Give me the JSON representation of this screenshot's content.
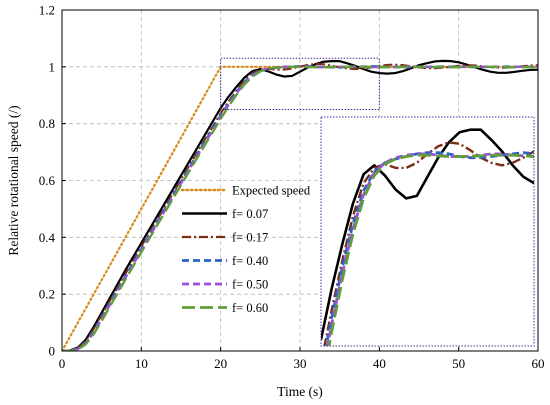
{
  "chart_data": {
    "type": "line",
    "title": "",
    "xlabel": "Time (s)",
    "ylabel": "Relative rotational speed (/)",
    "xlim": [
      0,
      60
    ],
    "ylim": [
      0,
      1.2
    ],
    "xticks": [
      0,
      10,
      20,
      30,
      40,
      50,
      60
    ],
    "yticks": [
      0,
      0.2,
      0.4,
      0.6,
      0.8,
      1,
      1.2
    ],
    "xtick_labels": [
      "0",
      "10",
      "20",
      "30",
      "40",
      "50",
      "60"
    ],
    "ytick_labels": [
      "0",
      "0.2",
      "0.4",
      "0.6",
      "0.8",
      "1",
      "1.2"
    ],
    "grid": true,
    "legend_position": "left",
    "zoom_window": {
      "x_range": [
        20,
        40
      ],
      "y_range": [
        0.85,
        1.03
      ]
    },
    "series": [
      {
        "name": "Expected speed",
        "color": "#d98a1a",
        "dash": "dotted",
        "points": [
          [
            0,
            0
          ],
          [
            20,
            1
          ],
          [
            60,
            1
          ]
        ]
      },
      {
        "name": "f= 0.07",
        "color": "#000000",
        "dash": "solid",
        "points": [
          [
            0,
            0
          ],
          [
            1,
            0.002
          ],
          [
            2,
            0.012
          ],
          [
            3,
            0.04
          ],
          [
            4,
            0.085
          ],
          [
            5,
            0.135
          ],
          [
            6,
            0.185
          ],
          [
            8,
            0.285
          ],
          [
            10,
            0.38
          ],
          [
            12,
            0.475
          ],
          [
            14,
            0.57
          ],
          [
            16,
            0.665
          ],
          [
            18,
            0.76
          ],
          [
            20,
            0.855
          ],
          [
            21,
            0.895
          ],
          [
            22,
            0.93
          ],
          [
            23,
            0.962
          ],
          [
            24,
            0.985
          ],
          [
            25,
            0.992
          ],
          [
            26,
            0.984
          ],
          [
            27,
            0.973
          ],
          [
            28,
            0.966
          ],
          [
            29,
            0.968
          ],
          [
            30,
            0.983
          ],
          [
            31,
            0.998
          ],
          [
            32,
            1.01
          ],
          [
            33,
            1.018
          ],
          [
            34,
            1.02
          ],
          [
            35,
            1.02
          ],
          [
            36,
            1.012
          ],
          [
            37,
            1.003
          ],
          [
            38,
            0.992
          ],
          [
            39,
            0.983
          ],
          [
            40,
            0.978
          ],
          [
            41,
            0.976
          ],
          [
            42,
            0.978
          ],
          [
            43,
            0.985
          ],
          [
            44,
            0.995
          ],
          [
            45,
            1.006
          ],
          [
            46,
            1.013
          ],
          [
            47,
            1.019
          ],
          [
            48,
            1.021
          ],
          [
            49,
            1.02
          ],
          [
            50,
            1.016
          ],
          [
            51,
            1.008
          ],
          [
            52,
            0.999
          ],
          [
            53,
            0.99
          ],
          [
            54,
            0.983
          ],
          [
            55,
            0.979
          ],
          [
            56,
            0.979
          ],
          [
            57,
            0.982
          ],
          [
            58,
            0.986
          ],
          [
            59,
            0.989
          ],
          [
            60,
            0.99
          ]
        ]
      },
      {
        "name": "f= 0.17",
        "color": "#7a2f16",
        "dash": "dashdot",
        "points": [
          [
            0,
            0
          ],
          [
            1,
            0.002
          ],
          [
            2,
            0.01
          ],
          [
            3,
            0.035
          ],
          [
            4,
            0.078
          ],
          [
            5,
            0.126
          ],
          [
            6,
            0.175
          ],
          [
            8,
            0.272
          ],
          [
            10,
            0.368
          ],
          [
            12,
            0.462
          ],
          [
            14,
            0.556
          ],
          [
            16,
            0.65
          ],
          [
            18,
            0.744
          ],
          [
            20,
            0.836
          ],
          [
            21,
            0.878
          ],
          [
            22,
            0.917
          ],
          [
            23,
            0.952
          ],
          [
            24,
            0.978
          ],
          [
            25,
            0.99
          ],
          [
            26,
            0.993
          ],
          [
            27,
            0.99
          ],
          [
            28,
            0.99
          ],
          [
            29,
            0.994
          ],
          [
            30,
            1.001
          ],
          [
            31,
            1.007
          ],
          [
            32,
            1.01
          ],
          [
            33,
            1.009
          ],
          [
            34,
            1.004
          ],
          [
            35,
            0.998
          ],
          [
            36,
            0.994
          ],
          [
            37,
            0.992
          ],
          [
            38,
            0.994
          ],
          [
            39,
            0.998
          ],
          [
            40,
            1.003
          ],
          [
            41,
            1.007
          ],
          [
            42,
            1.008
          ],
          [
            43,
            1.006
          ],
          [
            44,
            1.002
          ],
          [
            45,
            0.998
          ],
          [
            46,
            0.995
          ],
          [
            47,
            0.995
          ],
          [
            48,
            0.997
          ],
          [
            49,
            1.0
          ],
          [
            50,
            1.004
          ],
          [
            51,
            1.006
          ],
          [
            52,
            1.005
          ],
          [
            53,
            1.002
          ],
          [
            54,
            0.999
          ],
          [
            55,
            0.997
          ],
          [
            56,
            0.997
          ],
          [
            57,
            0.999
          ],
          [
            58,
            1.002
          ],
          [
            59,
            1.005
          ],
          [
            60,
            1.006
          ]
        ]
      },
      {
        "name": "f= 0.40",
        "color": "#2b62c4",
        "dash": "dashed",
        "points": [
          [
            0,
            0
          ],
          [
            1,
            0.001
          ],
          [
            2,
            0.008
          ],
          [
            3,
            0.03
          ],
          [
            4,
            0.07
          ],
          [
            5,
            0.118
          ],
          [
            6,
            0.167
          ],
          [
            8,
            0.264
          ],
          [
            10,
            0.36
          ],
          [
            12,
            0.455
          ],
          [
            14,
            0.549
          ],
          [
            16,
            0.643
          ],
          [
            18,
            0.737
          ],
          [
            20,
            0.829
          ],
          [
            21,
            0.872
          ],
          [
            22,
            0.912
          ],
          [
            23,
            0.946
          ],
          [
            24,
            0.972
          ],
          [
            25,
            0.987
          ],
          [
            26,
            0.994
          ],
          [
            27,
            0.997
          ],
          [
            28,
            0.999
          ],
          [
            29,
            1.001
          ],
          [
            30,
            1.002
          ],
          [
            31,
            1.002
          ],
          [
            32,
            1.001
          ],
          [
            33,
            0.999
          ],
          [
            34,
            0.998
          ],
          [
            35,
            0.998
          ],
          [
            36,
            0.999
          ],
          [
            37,
            1.0
          ],
          [
            38,
            1.001
          ],
          [
            39,
            1.002
          ],
          [
            40,
            1.001
          ],
          [
            42,
            0.999
          ],
          [
            44,
            0.999
          ],
          [
            46,
            1.0
          ],
          [
            48,
            1.001
          ],
          [
            50,
            1.0
          ],
          [
            52,
            0.999
          ],
          [
            54,
            1.0
          ],
          [
            56,
            1.001
          ],
          [
            58,
            1.0
          ],
          [
            60,
            1.0
          ]
        ]
      },
      {
        "name": "f= 0.50",
        "color": "#9c4fd8",
        "dash": "dashed",
        "points": [
          [
            0,
            0
          ],
          [
            1,
            0.001
          ],
          [
            2,
            0.007
          ],
          [
            3,
            0.027
          ],
          [
            4,
            0.065
          ],
          [
            5,
            0.112
          ],
          [
            6,
            0.161
          ],
          [
            8,
            0.258
          ],
          [
            10,
            0.354
          ],
          [
            12,
            0.449
          ],
          [
            14,
            0.543
          ],
          [
            16,
            0.637
          ],
          [
            18,
            0.731
          ],
          [
            20,
            0.823
          ],
          [
            21,
            0.867
          ],
          [
            22,
            0.907
          ],
          [
            23,
            0.942
          ],
          [
            24,
            0.969
          ],
          [
            25,
            0.986
          ],
          [
            26,
            0.994
          ],
          [
            27,
            0.998
          ],
          [
            28,
            1.0
          ],
          [
            29,
            1.001
          ],
          [
            30,
            1.001
          ],
          [
            31,
            1.0
          ],
          [
            32,
            0.999
          ],
          [
            33,
            0.999
          ],
          [
            34,
            0.999
          ],
          [
            35,
            1.0
          ],
          [
            36,
            1.001
          ],
          [
            37,
            1.001
          ],
          [
            38,
            1.0
          ],
          [
            40,
            0.999
          ],
          [
            42,
            1.0
          ],
          [
            44,
            1.001
          ],
          [
            46,
            1.0
          ],
          [
            48,
            0.999
          ],
          [
            50,
            1.0
          ],
          [
            52,
            1.001
          ],
          [
            54,
            1.0
          ],
          [
            56,
            0.999
          ],
          [
            58,
            1.0
          ],
          [
            60,
            1.0
          ]
        ]
      },
      {
        "name": "f= 0.60",
        "color": "#5f9e3a",
        "dash": "longdash",
        "points": [
          [
            0,
            0
          ],
          [
            1,
            0.001
          ],
          [
            2,
            0.006
          ],
          [
            3,
            0.024
          ],
          [
            4,
            0.06
          ],
          [
            5,
            0.106
          ],
          [
            6,
            0.155
          ],
          [
            8,
            0.252
          ],
          [
            10,
            0.348
          ],
          [
            12,
            0.443
          ],
          [
            14,
            0.537
          ],
          [
            16,
            0.631
          ],
          [
            18,
            0.725
          ],
          [
            20,
            0.817
          ],
          [
            21,
            0.861
          ],
          [
            22,
            0.902
          ],
          [
            23,
            0.938
          ],
          [
            24,
            0.966
          ],
          [
            25,
            0.984
          ],
          [
            26,
            0.993
          ],
          [
            27,
            0.997
          ],
          [
            28,
            0.999
          ],
          [
            29,
            1.0
          ],
          [
            30,
            1.0
          ],
          [
            32,
            0.999
          ],
          [
            34,
            0.999
          ],
          [
            36,
            1.0
          ],
          [
            38,
            1.0
          ],
          [
            40,
            0.999
          ],
          [
            42,
            0.999
          ],
          [
            44,
            1.0
          ],
          [
            46,
            1.0
          ],
          [
            48,
            0.999
          ],
          [
            50,
            0.999
          ],
          [
            52,
            1.0
          ],
          [
            54,
            1.0
          ],
          [
            56,
            0.999
          ],
          [
            58,
            0.999
          ],
          [
            60,
            0.999
          ]
        ]
      }
    ]
  }
}
